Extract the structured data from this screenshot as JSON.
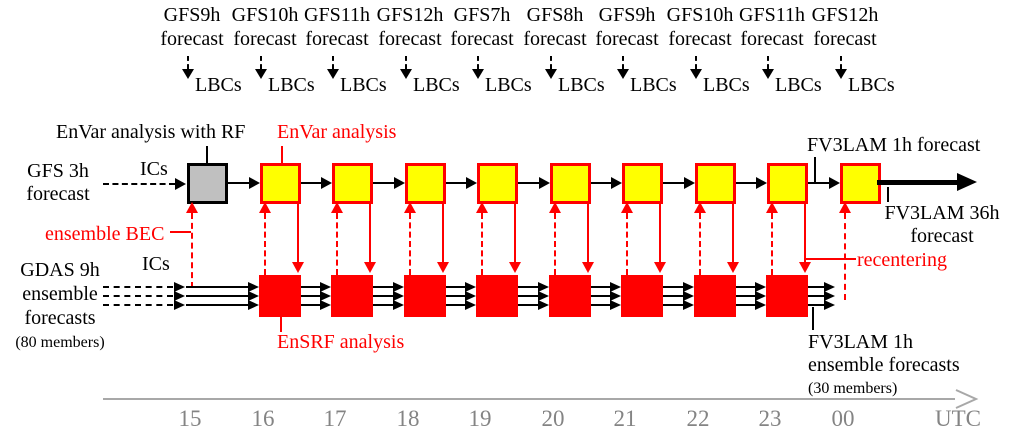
{
  "colors": {
    "accent_red": "#ff0000",
    "box_yellow": "#ffff00",
    "box_gray": "#c0c0c0",
    "line_black": "#000000",
    "axis_gray": "#a8a8a8"
  },
  "top_row": {
    "gfs_hours": [
      "GFS9h",
      "GFS10h",
      "GFS11h",
      "GFS12h",
      "GFS7h",
      "GFS8h",
      "GFS9h",
      "GFS10h",
      "GFS11h",
      "GFS12h"
    ],
    "forecast_word": "forecast",
    "lbcs_label": "LBCs"
  },
  "deterministic_row": {
    "left_label_line1": "GFS 3h",
    "left_label_line2": "forecast",
    "ics_label": "ICs",
    "gray_box_label": "EnVar analysis with RF",
    "envar_label": "EnVar analysis",
    "ensemble_bec_label": "ensemble BEC",
    "fv3lam_1h_label": "FV3LAM 1h forecast",
    "fv3lam_36h_line1": "FV3LAM 36h",
    "fv3lam_36h_line2": "forecast"
  },
  "ensemble_row": {
    "left_label_line1": "GDAS 9h",
    "left_label_line2": "ensemble",
    "left_label_line3": "forecasts",
    "members_label": "(80 members)",
    "ics_label": "ICs",
    "ensrf_label": "EnSRF analysis",
    "recentering_label": "recentering",
    "fv3lam_ens_line1": "FV3LAM 1h",
    "fv3lam_ens_line2": "ensemble forecasts",
    "members30_label": "(30 members)"
  },
  "axis": {
    "ticks": [
      "15",
      "16",
      "17",
      "18",
      "19",
      "20",
      "21",
      "22",
      "23",
      "00"
    ],
    "unit_label": "UTC"
  }
}
